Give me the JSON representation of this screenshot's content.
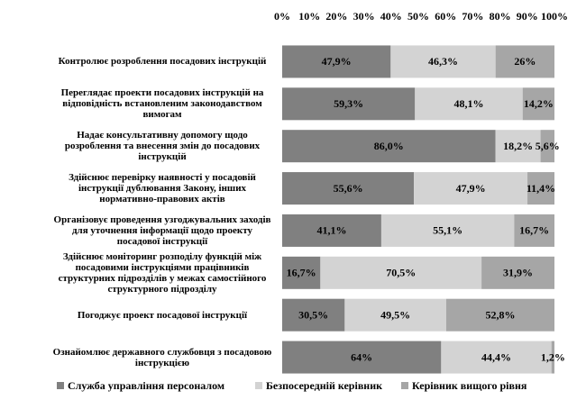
{
  "chart_data": {
    "type": "bar",
    "orientation": "horizontal",
    "stacking": "percent",
    "categories": [
      "Контролює розроблення посадових інструкцій",
      "Переглядає проекти посадових інструкцій на відповідність встановленим законодавством вимогам",
      "Надає консультативну допомогу щодо розроблення та внесення змін до посадових інструкцій",
      "Здійснює перевірку наявності у посадовій інструкції дублювання Закону, інших нормативно-правових актів",
      "Організовує проведення узгоджувальних заходів для уточнення інформації щодо проекту посадової інструкції",
      "Здійснює моніторинг розподілу функцій між посадовими інструкціями працівників структурних підрозділів у межах самостійного структурного підрозділу",
      "Погоджує проект посадової інструкції",
      "Ознайомлює державного службовця з посадовою інструкцією"
    ],
    "series": [
      {
        "name": "Служба управління персоналом",
        "color": "#808080",
        "values": [
          47.9,
          59.3,
          86.0,
          55.6,
          41.1,
          16.7,
          30.5,
          64
        ],
        "value_labels": [
          "47,9%",
          "59,3%",
          "86,0%",
          "55,6%",
          "41,1%",
          "16,7%",
          "30,5%",
          "64%"
        ]
      },
      {
        "name": "Безпосередній керівник",
        "color": "#d3d3d3",
        "values": [
          46.3,
          48.1,
          18.2,
          47.9,
          55.1,
          70.5,
          49.5,
          44.4
        ],
        "value_labels": [
          "46,3%",
          "48,1%",
          "18,2%",
          "47,9%",
          "55,1%",
          "70,5%",
          "49,5%",
          "44,4%"
        ]
      },
      {
        "name": "Керівник вищого рівня",
        "color": "#a6a6a6",
        "values": [
          26,
          14.2,
          5.6,
          11.4,
          16.7,
          31.9,
          52.8,
          1.2
        ],
        "value_labels": [
          "26%",
          "14,2%",
          "5,6%",
          "11,4%",
          "16,7%",
          "31,9%",
          "52,8%",
          "1,2%"
        ]
      }
    ],
    "xlim": [
      0,
      100
    ],
    "xticks": [
      {
        "value": 0,
        "label": "0%"
      },
      {
        "value": 10,
        "label": "10%"
      },
      {
        "value": 20,
        "label": "20%"
      },
      {
        "value": 30,
        "label": "30%"
      },
      {
        "value": 40,
        "label": "40%"
      },
      {
        "value": 50,
        "label": "50%"
      },
      {
        "value": 60,
        "label": "60%"
      },
      {
        "value": 70,
        "label": "70%"
      },
      {
        "value": 80,
        "label": "80%"
      },
      {
        "value": 90,
        "label": "90%"
      },
      {
        "value": 100,
        "label": "100%"
      }
    ],
    "legend": "bottom"
  }
}
